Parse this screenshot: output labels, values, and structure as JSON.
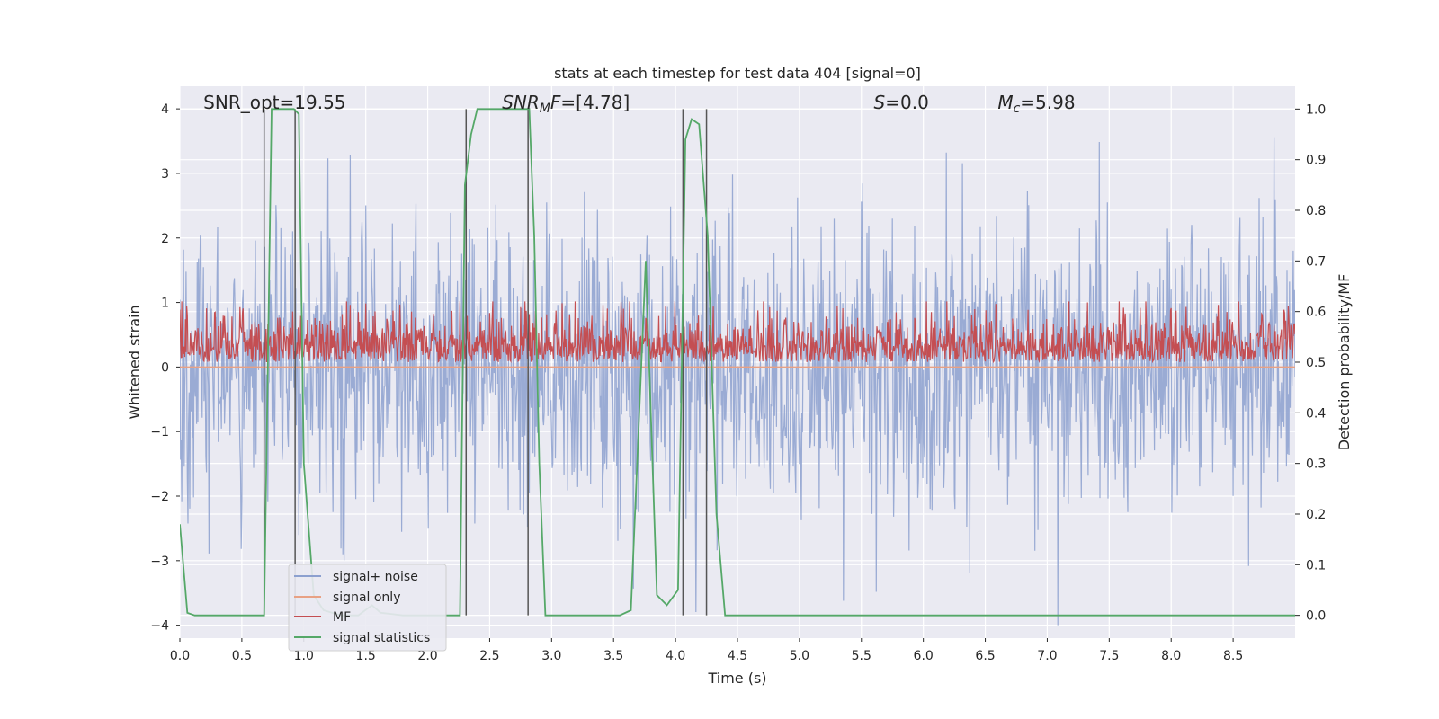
{
  "chart_data": {
    "type": "line",
    "title": "stats at each timestep for test data 404 [signal=0]",
    "xlabel": "Time (s)",
    "ylabel": "Whitened strain",
    "y2label": "Detection probability/MF",
    "xlim": [
      0.0,
      9.0
    ],
    "ylim": [
      -4.2,
      4.35
    ],
    "y2lim": [
      -0.045,
      1.045
    ],
    "x_ticks": [
      0.0,
      0.5,
      1.0,
      1.5,
      2.0,
      2.5,
      3.0,
      3.5,
      4.0,
      4.5,
      5.0,
      5.5,
      6.0,
      6.5,
      7.0,
      7.5,
      8.0,
      8.5
    ],
    "x_tick_labels": [
      "0.0",
      "0.5",
      "1.0",
      "1.5",
      "2.0",
      "2.5",
      "3.0",
      "3.5",
      "4.0",
      "4.5",
      "5.0",
      "5.5",
      "6.0",
      "6.5",
      "7.0",
      "7.5",
      "8.0",
      "8.5"
    ],
    "y_ticks": [
      -4,
      -3,
      -2,
      -1,
      0,
      1,
      2,
      3,
      4
    ],
    "y_tick_labels": [
      "−4",
      "−3",
      "−2",
      "−1",
      "0",
      "1",
      "2",
      "3",
      "4"
    ],
    "y2_ticks": [
      0.0,
      0.1,
      0.2,
      0.3,
      0.4,
      0.5,
      0.6,
      0.7,
      0.8,
      0.9,
      1.0
    ],
    "y2_tick_labels": [
      "0.0",
      "0.1",
      "0.2",
      "0.3",
      "0.4",
      "0.5",
      "0.6",
      "0.7",
      "0.8",
      "0.9",
      "1.0"
    ],
    "grid": true,
    "legend_position": "lower-left",
    "annotations": [
      {
        "text": "SNR_opt=19.55",
        "x": 0.19,
        "y": 4.0
      },
      {
        "text": "SNR_MF=[4.78]",
        "x": 2.6,
        "y": 4.0
      },
      {
        "text": "S=0.0",
        "x": 5.6,
        "y": 4.0
      },
      {
        "text": "M_c=5.98",
        "x": 6.6,
        "y": 4.0
      }
    ],
    "series": [
      {
        "name": "signal+ noise",
        "color": "#8ca0cf",
        "axis": "left",
        "kind": "noise",
        "amplitude_std": 1.0
      },
      {
        "name": "signal only",
        "color": "#e8a184",
        "axis": "left",
        "kind": "flat",
        "values": [
          0.0
        ]
      },
      {
        "name": "MF",
        "color": "#c44e52",
        "axis": "right",
        "kind": "noise",
        "mean": 0.52,
        "spread": 0.05
      },
      {
        "name": "signal statistics",
        "color": "#55a868",
        "axis": "right",
        "kind": "line",
        "x": [
          0.0,
          0.06,
          0.12,
          0.68,
          0.74,
          0.92,
          0.96,
          1.0,
          1.08,
          1.16,
          1.3,
          1.44,
          1.55,
          1.62,
          1.8,
          2.26,
          2.3,
          2.35,
          2.4,
          2.5,
          2.82,
          2.86,
          2.9,
          2.95,
          3.55,
          3.64,
          3.76,
          3.85,
          3.93,
          4.02,
          4.08,
          4.13,
          4.19,
          4.26,
          4.33,
          4.4,
          9.0
        ],
        "values": [
          0.18,
          0.005,
          0.0,
          0.0,
          1.0,
          1.0,
          0.99,
          0.3,
          0.04,
          0.01,
          0.0,
          0.0,
          0.02,
          0.005,
          0.0,
          0.0,
          0.85,
          0.95,
          1.0,
          1.0,
          1.0,
          0.75,
          0.3,
          0.0,
          0.0,
          0.01,
          0.7,
          0.04,
          0.02,
          0.05,
          0.94,
          0.98,
          0.97,
          0.75,
          0.2,
          0.0,
          0.0
        ]
      }
    ],
    "vertical_lines": [
      0.68,
      0.93,
      2.31,
      2.81,
      4.06,
      4.25
    ],
    "vertical_line_color": "#555555"
  },
  "legend": {
    "items": [
      "signal+ noise",
      "signal only",
      "MF",
      "signal statistics"
    ]
  }
}
